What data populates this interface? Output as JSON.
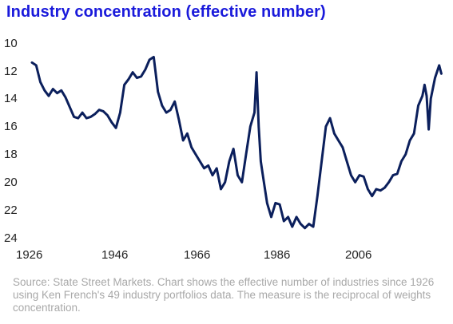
{
  "title": "Industry concentration (effective number)",
  "source": "Source: State Street Markets. Chart shows the effective number of industries since 1926 using Ken French's 49 industry portfolios data. The measure is the reciprocal of weights concentration.",
  "colors": {
    "title": "#1a1adb",
    "line": "#0b1f5c",
    "tick_text": "#222222",
    "source_text": "#a8a8a8"
  },
  "chart_data": {
    "type": "line",
    "title": "Industry concentration (effective number)",
    "xlabel": "",
    "ylabel": "",
    "y_inverted": true,
    "ylim": [
      10,
      24
    ],
    "xlim": [
      1926,
      2024
    ],
    "grid": false,
    "x_ticks": [
      "1926",
      "1946",
      "1966",
      "1986",
      "2006"
    ],
    "y_ticks": [
      "10",
      "12",
      "14",
      "16",
      "18",
      "20",
      "22",
      "24"
    ],
    "series": [
      {
        "x": [
          1926.0,
          1927.0,
          1928.0,
          1929.0,
          1930.0,
          1931.0,
          1932.0,
          1933.0,
          1934.0,
          1935.0,
          1936.0,
          1937.0,
          1938.0,
          1939.0,
          1940.0,
          1941.0,
          1942.0,
          1943.0,
          1944.0,
          1945.0,
          1946.0,
          1947.0,
          1948.0,
          1949.0,
          1950.0,
          1951.0,
          1952.0,
          1953.0,
          1954.0,
          1955.0,
          1956.0,
          1957.0,
          1958.0,
          1959.0,
          1960.0,
          1961.0,
          1962.0,
          1963.0,
          1964.0,
          1965.0,
          1966.0,
          1967.0,
          1968.0,
          1969.0,
          1970.0,
          1971.0,
          1972.0,
          1973.0,
          1974.0,
          1975.0,
          1976.0,
          1977.0,
          1978.0,
          1979.0,
          1979.5,
          1980.0,
          1980.5,
          1981.0,
          1982.0,
          1983.0,
          1984.0,
          1985.0,
          1986.0,
          1987.0,
          1988.0,
          1989.0,
          1990.0,
          1991.0,
          1992.0,
          1993.0,
          1994.0,
          1995.0,
          1996.0,
          1997.0,
          1998.0,
          1999.0,
          2000.0,
          2001.0,
          2002.0,
          2003.0,
          2004.0,
          2005.0,
          2006.0,
          2007.0,
          2008.0,
          2009.0,
          2010.0,
          2011.0,
          2012.0,
          2013.0,
          2014.0,
          2015.0,
          2016.0,
          2017.0,
          2018.0,
          2019.0,
          2019.5,
          2020.0,
          2020.5,
          2021.0,
          2022.0,
          2023.0,
          2023.5
        ],
        "values": [
          11.4,
          11.6,
          12.8,
          13.4,
          13.8,
          13.3,
          13.6,
          13.4,
          13.9,
          14.6,
          15.3,
          15.4,
          15.0,
          15.4,
          15.3,
          15.1,
          14.8,
          14.9,
          15.2,
          15.7,
          16.1,
          15.0,
          13.0,
          12.6,
          12.1,
          12.5,
          12.4,
          11.9,
          11.2,
          11.0,
          13.5,
          14.5,
          15.0,
          14.8,
          14.2,
          15.5,
          17.0,
          16.5,
          17.5,
          18.0,
          18.5,
          19.0,
          18.8,
          19.5,
          19.0,
          20.5,
          20.0,
          18.5,
          17.6,
          19.5,
          20.0,
          18.0,
          16.0,
          15.0,
          12.1,
          16.0,
          18.5,
          19.5,
          21.5,
          22.5,
          21.5,
          21.6,
          22.8,
          22.5,
          23.2,
          22.5,
          23.0,
          23.3,
          23.0,
          23.2,
          21.0,
          18.5,
          16.0,
          15.4,
          16.5,
          17.0,
          17.5,
          18.5,
          19.5,
          20.0,
          19.5,
          19.6,
          20.5,
          21.0,
          20.5,
          20.6,
          20.4,
          20.0,
          19.5,
          19.4,
          18.5,
          18.0,
          17.0,
          16.5,
          14.5,
          13.8,
          13.0,
          13.8,
          16.2,
          14.0,
          12.5,
          11.6,
          12.2
        ]
      }
    ]
  }
}
